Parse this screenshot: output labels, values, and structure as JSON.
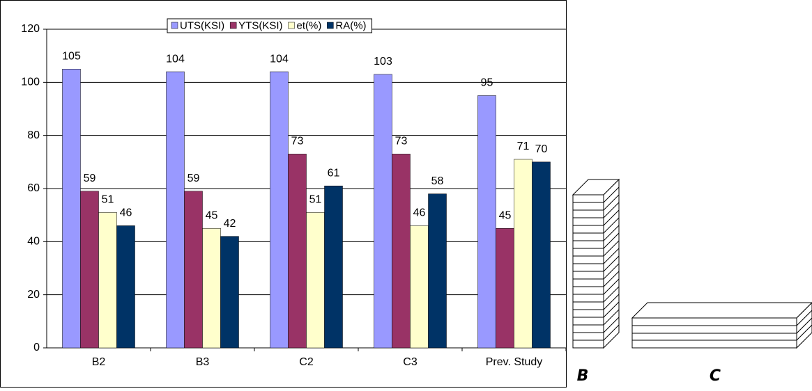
{
  "chart_data": {
    "type": "bar",
    "categories": [
      "B2",
      "B3",
      "C2",
      "C3",
      "Prev. Study"
    ],
    "series": [
      {
        "name": "UTS(KSI)",
        "color": "#9999ff",
        "values": [
          105,
          104,
          104,
          103,
          95
        ]
      },
      {
        "name": "YTS(KSI)",
        "color": "#993366",
        "values": [
          59,
          59,
          73,
          73,
          45
        ]
      },
      {
        "name": "et(%)",
        "color": "#ffffcc",
        "values": [
          51,
          45,
          51,
          46,
          71
        ]
      },
      {
        "name": "RA(%)",
        "color": "#003366",
        "values": [
          46,
          42,
          61,
          58,
          70
        ]
      }
    ],
    "ylim": [
      0,
      120
    ],
    "yticks": [
      0,
      20,
      40,
      60,
      80,
      100,
      120
    ],
    "grid": true,
    "legend": "top"
  },
  "figure_labels": [
    "B",
    "C"
  ]
}
